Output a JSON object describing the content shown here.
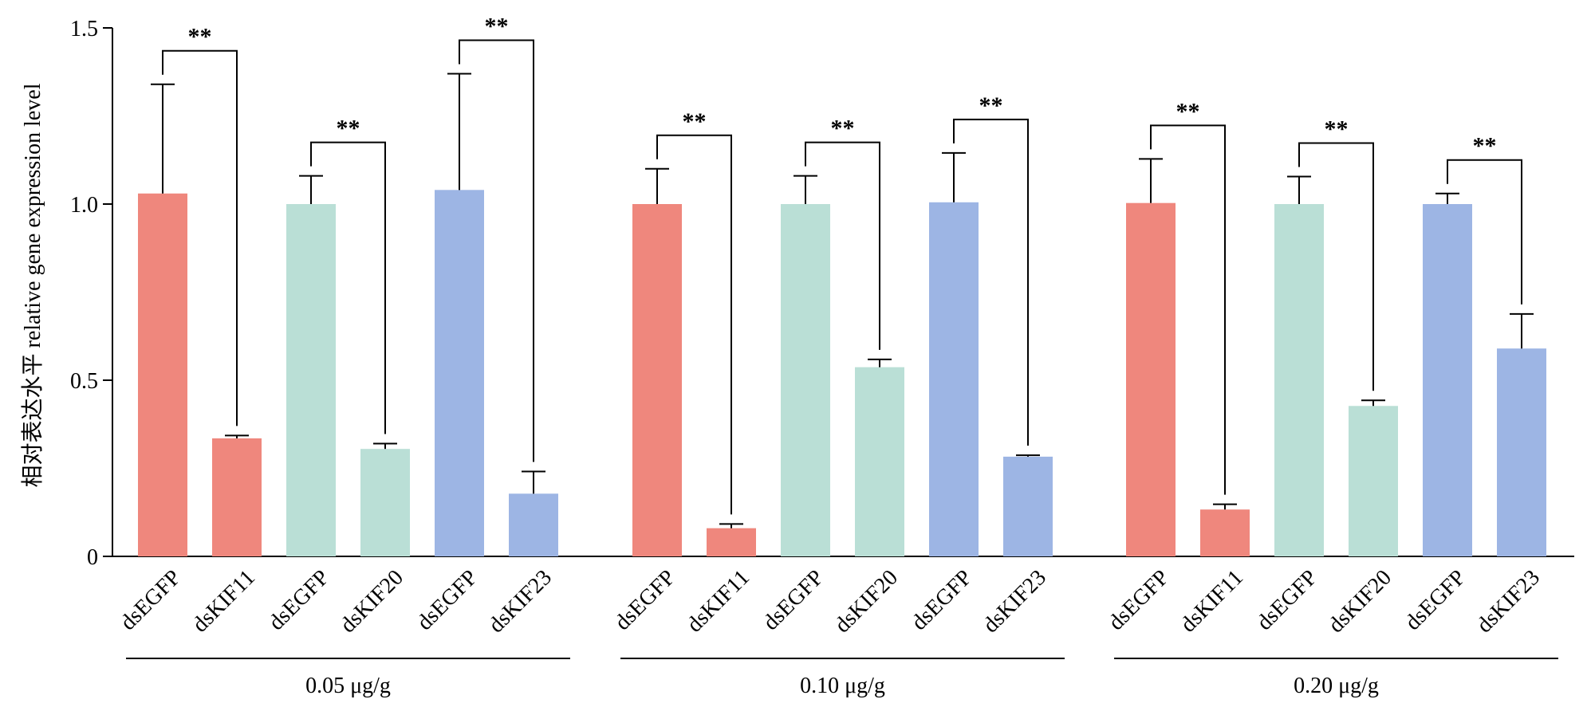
{
  "chart_data": {
    "type": "bar",
    "title": "",
    "ylabel": "相对表达水平 relative gene expression level",
    "xlabel": "",
    "ylim": [
      0,
      1.5
    ],
    "yticks": [
      0,
      0.5,
      1.0,
      1.5
    ],
    "ytick_labels": [
      "0",
      "0.5",
      "1.0",
      "1.5"
    ],
    "grid": false,
    "colors": {
      "KIF11": "#EF877D",
      "KIF20": "#BADFD6",
      "KIF23": "#9DB5E4"
    },
    "groups": [
      {
        "label": "0.05 μg/g",
        "bars": [
          {
            "category": "dsEGFP",
            "gene": "KIF11",
            "value": 1.03,
            "error": 0.31
          },
          {
            "category": "dsKIF11",
            "gene": "KIF11",
            "value": 0.335,
            "error": 0.008
          },
          {
            "category": "dsEGFP",
            "gene": "KIF20",
            "value": 1.0,
            "error": 0.08
          },
          {
            "category": "dsKIF20",
            "gene": "KIF20",
            "value": 0.305,
            "error": 0.015
          },
          {
            "category": "dsEGFP",
            "gene": "KIF23",
            "value": 1.04,
            "error": 0.33
          },
          {
            "category": "dsKIF23",
            "gene": "KIF23",
            "value": 0.178,
            "error": 0.063
          }
        ],
        "significance": [
          {
            "from": 0,
            "to": 1,
            "label": "**"
          },
          {
            "from": 2,
            "to": 3,
            "label": "**"
          },
          {
            "from": 4,
            "to": 5,
            "label": "**"
          }
        ]
      },
      {
        "label": "0.10 μg/g",
        "bars": [
          {
            "category": "dsEGFP",
            "gene": "KIF11",
            "value": 1.0,
            "error": 0.1
          },
          {
            "category": "dsKIF11",
            "gene": "KIF11",
            "value": 0.08,
            "error": 0.012
          },
          {
            "category": "dsEGFP",
            "gene": "KIF20",
            "value": 1.0,
            "error": 0.08
          },
          {
            "category": "dsKIF20",
            "gene": "KIF20",
            "value": 0.537,
            "error": 0.022
          },
          {
            "category": "dsEGFP",
            "gene": "KIF23",
            "value": 1.005,
            "error": 0.14
          },
          {
            "category": "dsKIF23",
            "gene": "KIF23",
            "value": 0.283,
            "error": 0.004
          }
        ],
        "significance": [
          {
            "from": 0,
            "to": 1,
            "label": "**"
          },
          {
            "from": 2,
            "to": 3,
            "label": "**"
          },
          {
            "from": 4,
            "to": 5,
            "label": "**"
          }
        ]
      },
      {
        "label": "0.20 μg/g",
        "bars": [
          {
            "category": "dsEGFP",
            "gene": "KIF11",
            "value": 1.003,
            "error": 0.125
          },
          {
            "category": "dsKIF11",
            "gene": "KIF11",
            "value": 0.133,
            "error": 0.015
          },
          {
            "category": "dsEGFP",
            "gene": "KIF20",
            "value": 1.0,
            "error": 0.078
          },
          {
            "category": "dsKIF20",
            "gene": "KIF20",
            "value": 0.427,
            "error": 0.016
          },
          {
            "category": "dsEGFP",
            "gene": "KIF23",
            "value": 1.0,
            "error": 0.03
          },
          {
            "category": "dsKIF23",
            "gene": "KIF23",
            "value": 0.59,
            "error": 0.098
          }
        ],
        "significance": [
          {
            "from": 0,
            "to": 1,
            "label": "**"
          },
          {
            "from": 2,
            "to": 3,
            "label": "**"
          },
          {
            "from": 4,
            "to": 5,
            "label": "**"
          }
        ]
      }
    ]
  }
}
